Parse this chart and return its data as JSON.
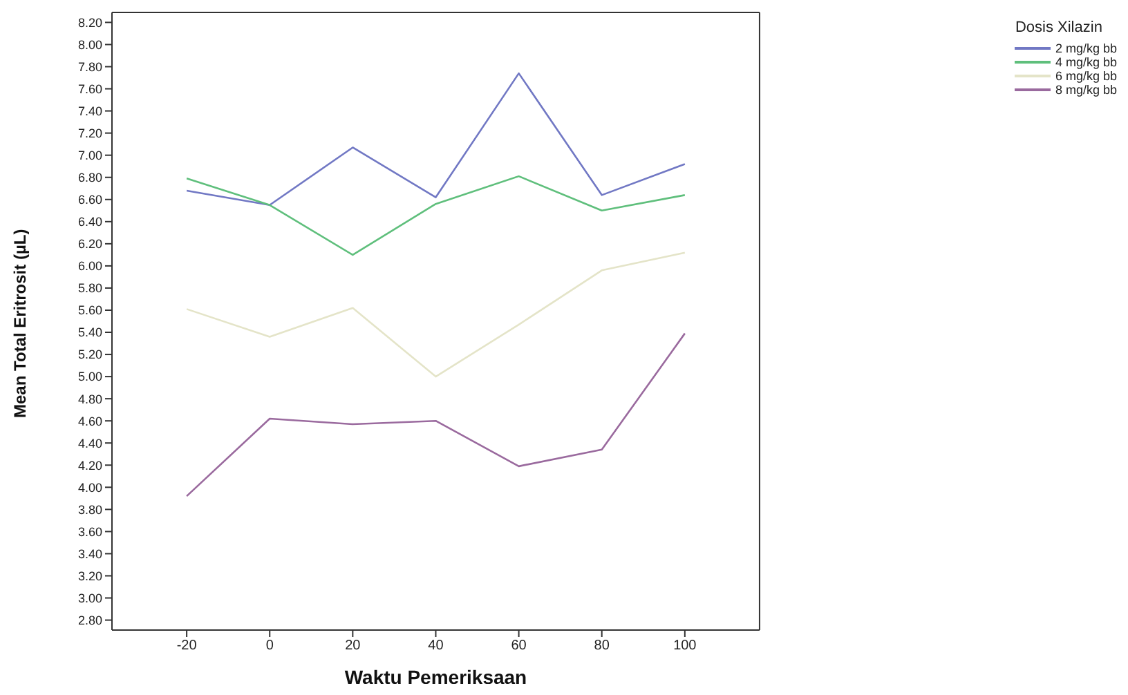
{
  "chart_data": {
    "type": "line",
    "xlabel": "Waktu Pemeriksaan",
    "ylabel": "Mean Total Eritrosit (µL)",
    "legend_title": "Dosis Xilazin",
    "legend": "top right",
    "marker": "none",
    "line_style": "solid",
    "x": [
      -20,
      0,
      20,
      40,
      60,
      80,
      100
    ],
    "xlim": [
      -38,
      118
    ],
    "xticks": [
      -20,
      0,
      20,
      40,
      60,
      80,
      100
    ],
    "ylim": [
      2.71,
      8.29
    ],
    "yticks": [
      {
        "value": 2.8,
        "label": "2.80"
      },
      {
        "value": 3.0,
        "label": "3.00"
      },
      {
        "value": 3.2,
        "label": "3.20"
      },
      {
        "value": 3.4,
        "label": "3.40"
      },
      {
        "value": 3.6,
        "label": "3.60"
      },
      {
        "value": 3.8,
        "label": "3.80"
      },
      {
        "value": 4.0,
        "label": "4.00"
      },
      {
        "value": 4.2,
        "label": "4.20"
      },
      {
        "value": 4.4,
        "label": "4.40"
      },
      {
        "value": 4.6,
        "label": "4.60"
      },
      {
        "value": 4.8,
        "label": "4.80"
      },
      {
        "value": 5.0,
        "label": "5.00"
      },
      {
        "value": 5.2,
        "label": "5.20"
      },
      {
        "value": 5.4,
        "label": "5.40"
      },
      {
        "value": 5.6,
        "label": "5.60"
      },
      {
        "value": 5.8,
        "label": "5.80"
      },
      {
        "value": 6.0,
        "label": "6.00"
      },
      {
        "value": 6.2,
        "label": "6.20"
      },
      {
        "value": 6.4,
        "label": "6.40"
      },
      {
        "value": 6.6,
        "label": "6.60"
      },
      {
        "value": 6.8,
        "label": "6.80"
      },
      {
        "value": 7.0,
        "label": "7.00"
      },
      {
        "value": 7.2,
        "label": "7.20"
      },
      {
        "value": 7.4,
        "label": "7.40"
      },
      {
        "value": 7.6,
        "label": "7.60"
      },
      {
        "value": 7.8,
        "label": "7.80"
      },
      {
        "value": 8.0,
        "label": "8.00"
      },
      {
        "value": 8.2,
        "label": "8.20"
      }
    ],
    "series": [
      {
        "name": "2 mg/kg bb",
        "color": "#7178c4",
        "values": [
          6.68,
          6.55,
          7.07,
          6.62,
          7.74,
          6.64,
          6.92
        ]
      },
      {
        "name": "4 mg/kg bb",
        "color": "#5fbf7c",
        "values": [
          6.79,
          6.55,
          6.1,
          6.56,
          6.81,
          6.5,
          6.64
        ]
      },
      {
        "name": "6 mg/kg bb",
        "color": "#e4e4c8",
        "values": [
          5.61,
          5.36,
          5.62,
          5.0,
          5.47,
          5.96,
          6.12
        ]
      },
      {
        "name": "8 mg/kg bb",
        "color": "#9a6a9e",
        "values": [
          3.92,
          4.62,
          4.57,
          4.6,
          4.19,
          4.34,
          5.39
        ]
      }
    ]
  }
}
